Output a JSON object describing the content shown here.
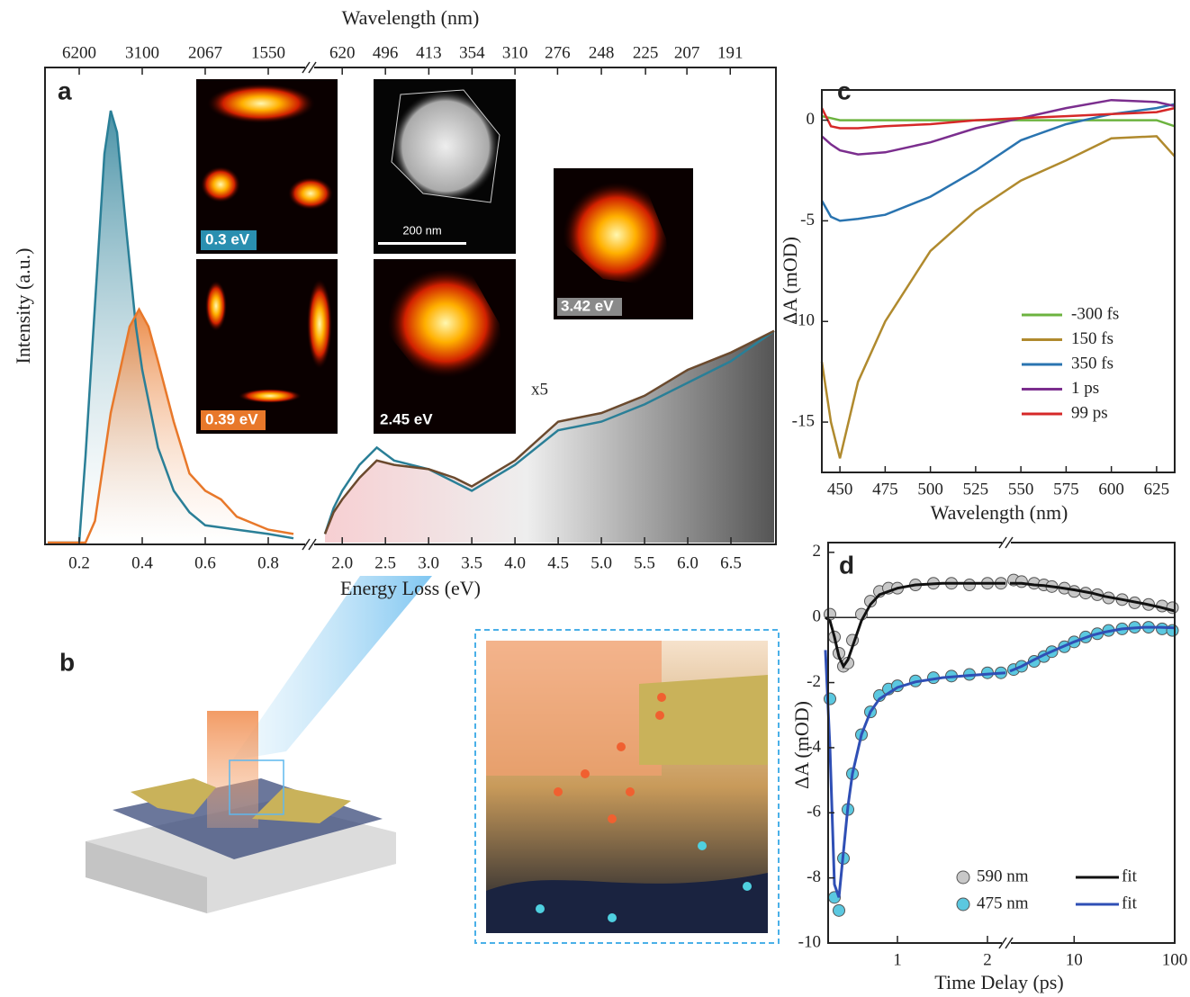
{
  "chart_data": [
    {
      "type": "line",
      "panel_label": "a",
      "x_label": "Energy Loss (eV)",
      "y_label": "Intensity (a.u.)",
      "top_axis_label": "Wavelength (nm)",
      "ylim": [
        0,
        1.1
      ],
      "annotation": "x5",
      "insets": [
        "0.3 eV",
        "0.39 eV",
        "2.45 eV",
        "3.42 eV"
      ],
      "scale_bar": "200 nm",
      "segments": [
        {
          "xlim": [
            0.1,
            0.9
          ],
          "xticks": [
            0.2,
            0.4,
            0.6,
            0.8
          ],
          "top_ticks": [
            6200,
            3100,
            2067,
            1550
          ],
          "series": [
            {
              "color": "#2a7f97",
              "x": [
                0.1,
                0.15,
                0.2,
                0.22,
                0.25,
                0.28,
                0.3,
                0.32,
                0.35,
                0.38,
                0.4,
                0.45,
                0.5,
                0.55,
                0.6,
                0.7,
                0.8,
                0.88
              ],
              "values": [
                0,
                0,
                0,
                0.2,
                0.55,
                0.9,
                1.0,
                0.95,
                0.72,
                0.5,
                0.4,
                0.22,
                0.12,
                0.07,
                0.04,
                0.03,
                0.02,
                0.01
              ]
            },
            {
              "color": "#e8782a",
              "x": [
                0.1,
                0.15,
                0.2,
                0.22,
                0.25,
                0.28,
                0.3,
                0.33,
                0.36,
                0.39,
                0.42,
                0.45,
                0.5,
                0.55,
                0.6,
                0.65,
                0.7,
                0.8,
                0.88
              ],
              "values": [
                0,
                0,
                0,
                0,
                0.05,
                0.2,
                0.3,
                0.4,
                0.5,
                0.54,
                0.5,
                0.42,
                0.28,
                0.16,
                0.12,
                0.1,
                0.06,
                0.03,
                0.02
              ]
            }
          ]
        },
        {
          "xlim": [
            1.8,
            7.0
          ],
          "xticks": [
            {
              "value": 2,
              "label": "2.0"
            },
            2.5,
            {
              "value": 3,
              "label": "3.0"
            },
            3.5,
            {
              "value": 4,
              "label": "4.0"
            },
            4.5,
            {
              "value": 5,
              "label": "5.0"
            },
            5.5,
            {
              "value": 6,
              "label": "6.0"
            },
            6.5
          ],
          "top_ticks": [
            620,
            496,
            413,
            354,
            310,
            276,
            248,
            225,
            207,
            191
          ],
          "series": [
            {
              "color": "#2a7f97",
              "x": [
                1.8,
                1.9,
                2.0,
                2.2,
                2.4,
                2.6,
                3.0,
                3.3,
                3.5,
                4.0,
                4.5,
                5.0,
                5.5,
                6.0,
                6.5,
                7.0
              ],
              "values": [
                0.02,
                0.08,
                0.12,
                0.18,
                0.22,
                0.19,
                0.17,
                0.14,
                0.12,
                0.18,
                0.26,
                0.28,
                0.32,
                0.37,
                0.42,
                0.49
              ]
            },
            {
              "color": "#6b4a2e",
              "x": [
                1.8,
                1.9,
                2.0,
                2.2,
                2.4,
                2.6,
                3.0,
                3.3,
                3.5,
                4.0,
                4.5,
                5.0,
                5.5,
                6.0,
                6.5,
                7.0
              ],
              "values": [
                0.02,
                0.07,
                0.1,
                0.15,
                0.19,
                0.18,
                0.17,
                0.15,
                0.13,
                0.19,
                0.28,
                0.3,
                0.34,
                0.4,
                0.44,
                0.49
              ]
            }
          ]
        }
      ]
    },
    {
      "type": "line",
      "panel_label": "c",
      "x_label": "Wavelength (nm)",
      "y_label": "ΔA (mOD)",
      "xlim": [
        440,
        635
      ],
      "xticks": [
        450,
        475,
        500,
        525,
        550,
        575,
        600,
        625
      ],
      "ylim": [
        -17.5,
        1.5
      ],
      "yticks": [
        0,
        -5,
        -10,
        -15
      ],
      "x": [
        440,
        445,
        450,
        460,
        475,
        500,
        525,
        550,
        575,
        600,
        625,
        635
      ],
      "series": [
        {
          "name": "-300 fs",
          "color": "#6cb33f",
          "values": [
            0.2,
            0.1,
            0,
            0,
            0,
            0,
            0,
            0,
            0,
            0,
            0,
            -0.3
          ]
        },
        {
          "name": "150 fs",
          "color": "#b08a2e",
          "values": [
            -12,
            -15,
            -16.8,
            -13,
            -10,
            -6.5,
            -4.5,
            -3,
            -2,
            -0.9,
            -0.8,
            -1.8
          ]
        },
        {
          "name": "350 fs",
          "color": "#2a74b0",
          "values": [
            -4,
            -4.8,
            -5,
            -4.9,
            -4.7,
            -3.8,
            -2.5,
            -1,
            -0.2,
            0.3,
            0.6,
            0.8
          ]
        },
        {
          "name": "1 ps",
          "color": "#7b2e8e",
          "values": [
            -0.8,
            -1.2,
            -1.5,
            -1.7,
            -1.6,
            -1.1,
            -0.4,
            0.1,
            0.6,
            1.0,
            0.9,
            0.7
          ]
        },
        {
          "name": "99 ps",
          "color": "#d62828",
          "values": [
            0.6,
            -0.3,
            -0.4,
            -0.4,
            -0.3,
            -0.2,
            0,
            0.1,
            0.2,
            0.3,
            0.4,
            0.6
          ]
        }
      ]
    },
    {
      "type": "scatter",
      "panel_label": "d",
      "x_label": "Time Delay (ps)",
      "y_label": "ΔA (mOD)",
      "ylim": [
        -10,
        2.3
      ],
      "yticks": [
        2,
        0,
        -2,
        -4,
        -6,
        -8,
        -10
      ],
      "segments": [
        {
          "xlim": [
            0.2,
            2.2
          ],
          "xticks": [
            1,
            2
          ]
        },
        {
          "xlim": [
            2.3,
            100
          ],
          "xticks": [
            10,
            100
          ],
          "log": true
        }
      ],
      "series": [
        {
          "name": "590 nm",
          "color": "#c8c8c8",
          "style": "marker",
          "x": [
            0.25,
            0.3,
            0.35,
            0.4,
            0.45,
            0.5,
            0.6,
            0.7,
            0.8,
            0.9,
            1.0,
            1.2,
            1.4,
            1.6,
            1.8,
            2.0,
            2.15,
            2.5,
            3,
            4,
            5,
            6,
            8,
            10,
            13,
            17,
            22,
            30,
            40,
            55,
            75,
            95
          ],
          "values": [
            0.1,
            -0.6,
            -1.1,
            -1.5,
            -1.4,
            -0.7,
            0.1,
            0.5,
            0.8,
            0.9,
            0.9,
            1.0,
            1.05,
            1.05,
            1.0,
            1.05,
            1.05,
            1.15,
            1.1,
            1.05,
            1.0,
            0.95,
            0.9,
            0.8,
            0.75,
            0.7,
            0.6,
            0.55,
            0.45,
            0.4,
            0.35,
            0.3
          ]
        },
        {
          "name": "fit",
          "color": "#111111",
          "style": "line",
          "x": [
            0.2,
            0.25,
            0.3,
            0.35,
            0.4,
            0.45,
            0.5,
            0.6,
            0.7,
            0.8,
            1.0,
            1.2,
            1.5,
            1.8,
            2.2,
            2.25,
            2.3,
            3,
            4,
            5,
            7,
            10,
            15,
            20,
            30,
            50,
            70,
            100
          ],
          "values": [
            0,
            -0.1,
            -0.6,
            -1.2,
            -1.5,
            -1.3,
            -0.9,
            -0.1,
            0.4,
            0.7,
            0.9,
            1.0,
            1.05,
            1.05,
            1.05,
            null,
            1.05,
            1.05,
            1.0,
            0.98,
            0.92,
            0.85,
            0.75,
            0.65,
            0.55,
            0.42,
            0.32,
            0.2
          ]
        },
        {
          "name": "475 nm",
          "color": "#5bc8e0",
          "style": "marker",
          "x": [
            0.25,
            0.3,
            0.35,
            0.4,
            0.45,
            0.5,
            0.6,
            0.7,
            0.8,
            0.9,
            1.0,
            1.2,
            1.4,
            1.6,
            1.8,
            2.0,
            2.15,
            2.5,
            3,
            4,
            5,
            6,
            8,
            10,
            13,
            17,
            22,
            30,
            40,
            55,
            75,
            95
          ],
          "values": [
            -2.5,
            -8.6,
            -9.0,
            -7.4,
            -5.9,
            -4.8,
            -3.6,
            -2.9,
            -2.4,
            -2.2,
            -2.1,
            -1.95,
            -1.85,
            -1.8,
            -1.75,
            -1.7,
            -1.7,
            -1.6,
            -1.5,
            -1.35,
            -1.2,
            -1.05,
            -0.9,
            -0.75,
            -0.6,
            -0.5,
            -0.4,
            -0.35,
            -0.3,
            -0.3,
            -0.35,
            -0.4
          ]
        },
        {
          "name": "fit",
          "color": "#2f4fb5",
          "style": "line",
          "x": [
            0.2,
            0.25,
            0.3,
            0.35,
            0.4,
            0.45,
            0.5,
            0.6,
            0.7,
            0.8,
            1.0,
            1.2,
            1.5,
            1.8,
            2.2,
            2.25,
            2.3,
            3,
            4,
            5,
            7,
            10,
            15,
            20,
            30,
            50,
            70,
            100
          ],
          "values": [
            -1.0,
            -4,
            -8.2,
            -8.6,
            -7.2,
            -5.8,
            -4.8,
            -3.6,
            -2.9,
            -2.5,
            -2.15,
            -1.98,
            -1.85,
            -1.78,
            -1.7,
            null,
            -1.65,
            -1.5,
            -1.3,
            -1.15,
            -0.95,
            -0.75,
            -0.55,
            -0.45,
            -0.35,
            -0.3,
            -0.3,
            -0.32
          ]
        }
      ]
    }
  ],
  "illustration": {
    "panel_label": "b"
  }
}
